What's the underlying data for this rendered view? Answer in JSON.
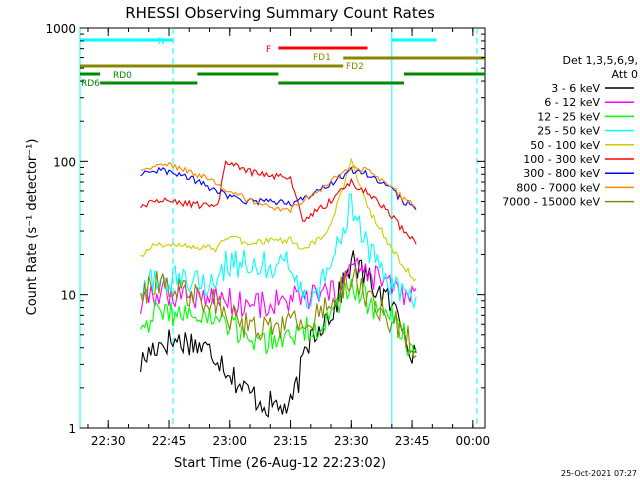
{
  "chart_data": {
    "type": "line",
    "title": "RHESSI Observing Summary Count Rates",
    "xlabel": "Start Time (26-Aug-12 22:23:02)",
    "ylabel": "Count Rate (s⁻¹ detector⁻¹)",
    "y_scale": "log",
    "ylim": [
      1,
      1000
    ],
    "xlim": [
      "22:23:02",
      "00:03:00"
    ],
    "x_ticks": [
      "22:30",
      "22:45",
      "23:00",
      "23:15",
      "23:30",
      "23:45",
      "00:00"
    ],
    "y_ticks": [
      "1",
      "10",
      "100",
      "1000"
    ],
    "grid": false,
    "legend_placement": "right",
    "legend_header": [
      "Det 1,3,5,6,9,",
      "Att 0"
    ],
    "footer_date": "25-Oct-2021 07:27",
    "series": [
      {
        "name": "3 - 6 keV",
        "color": "#000000",
        "x": [
          "22:38",
          "22:41",
          "22:44",
          "22:50",
          "22:57",
          "23:03",
          "23:09",
          "23:15",
          "23:20",
          "23:26",
          "23:30",
          "23:34",
          "23:39",
          "23:43",
          "23:46"
        ],
        "y": [
          3,
          4,
          4.5,
          4.5,
          3.5,
          2,
          1.5,
          1.4,
          5,
          8,
          18,
          13,
          9,
          6,
          3
        ]
      },
      {
        "name": "6 - 12 keV",
        "color": "#ff00ff",
        "x": [
          "22:38",
          "22:41",
          "22:44",
          "22:50",
          "22:57",
          "23:00",
          "23:04",
          "23:09",
          "23:15",
          "23:20",
          "23:26",
          "23:30",
          "23:34",
          "23:39",
          "23:43",
          "23:46"
        ],
        "y": [
          8,
          10,
          10.5,
          10,
          9.5,
          9,
          8.5,
          8.5,
          9,
          9.5,
          10,
          16,
          14,
          12,
          10,
          9.5
        ]
      },
      {
        "name": "12 - 25 keV",
        "color": "#00ff00",
        "x": [
          "22:38",
          "22:41",
          "22:44",
          "22:50",
          "22:57",
          "23:00",
          "23:04",
          "23:09",
          "23:15",
          "23:20",
          "23:26",
          "23:30",
          "23:34",
          "23:39",
          "23:43",
          "23:46"
        ],
        "y": [
          6,
          7,
          7.5,
          7,
          6.5,
          5.5,
          5,
          4.5,
          5,
          5.5,
          7,
          12,
          9,
          7,
          5,
          3.5
        ]
      },
      {
        "name": "25 - 50 keV",
        "color": "#00ffff",
        "x": [
          "22:38",
          "22:41",
          "22:44",
          "22:50",
          "22:57",
          "22:59",
          "23:04",
          "23:09",
          "23:15",
          "23:18",
          "23:24",
          "23:30",
          "23:34",
          "23:39",
          "23:43",
          "23:46"
        ],
        "y": [
          11,
          13,
          13,
          12.5,
          12,
          17,
          17,
          17,
          18,
          9,
          13,
          50,
          22,
          13,
          10,
          9
        ]
      },
      {
        "name": "50 - 100 keV",
        "color": "#cccc00",
        "x": [
          "22:38",
          "22:41",
          "22:44",
          "22:50",
          "22:57",
          "22:59",
          "23:04",
          "23:09",
          "23:15",
          "23:18",
          "23:24",
          "23:30",
          "23:34",
          "23:39",
          "23:43",
          "23:46"
        ],
        "y": [
          20,
          23,
          24,
          23,
          22,
          27,
          25,
          25,
          26,
          22,
          28,
          100,
          45,
          25,
          16,
          13
        ]
      },
      {
        "name": "100 - 300 keV",
        "color": "#ff0000",
        "x": [
          "22:38",
          "22:41",
          "22:44",
          "22:50",
          "22:57",
          "22:59",
          "23:04",
          "23:09",
          "23:15",
          "23:18",
          "23:24",
          "23:30",
          "23:34",
          "23:39",
          "23:43",
          "23:46"
        ],
        "y": [
          45,
          49,
          50,
          48,
          45,
          100,
          85,
          78,
          76,
          36,
          48,
          70,
          58,
          42,
          30,
          24
        ]
      },
      {
        "name": "300 - 800 keV",
        "color": "#0000ff",
        "x": [
          "22:38",
          "22:41",
          "22:44",
          "22:50",
          "22:57",
          "22:59",
          "23:04",
          "23:09",
          "23:15",
          "23:20",
          "23:26",
          "23:30",
          "23:34",
          "23:39",
          "23:43",
          "23:46"
        ],
        "y": [
          78,
          84,
          85,
          75,
          60,
          55,
          50,
          50,
          48,
          55,
          72,
          85,
          80,
          65,
          50,
          44
        ]
      },
      {
        "name": "800 - 7000 keV",
        "color": "#ff8800",
        "x": [
          "22:38",
          "22:41",
          "22:44",
          "22:50",
          "22:57",
          "23:02",
          "23:09",
          "23:15",
          "23:20",
          "23:26",
          "23:30",
          "23:34",
          "23:39",
          "23:43",
          "23:46"
        ],
        "y": [
          86,
          93,
          95,
          84,
          68,
          55,
          46,
          44,
          55,
          75,
          90,
          84,
          68,
          52,
          46
        ]
      },
      {
        "name": "7000 - 15000 keV",
        "color": "#888800",
        "x": [
          "22:38",
          "22:41",
          "22:44",
          "22:50",
          "22:57",
          "23:00",
          "23:04",
          "23:09",
          "23:15",
          "23:20",
          "23:26",
          "23:30",
          "23:34",
          "23:39",
          "23:43",
          "23:46"
        ],
        "y": [
          10,
          12,
          12.5,
          10,
          9,
          7,
          6,
          5.5,
          6,
          7,
          9,
          14,
          10,
          7,
          5,
          4
        ]
      }
    ],
    "flag_labels": [
      "N",
      "F",
      "FD1",
      "FD2",
      "RD0",
      "RD6"
    ],
    "flag_bars": [
      {
        "label": "N",
        "color": "#00ffff",
        "level": 40,
        "segments": [
          [
            "22:23:02",
            "22:46"
          ],
          [
            "23:40",
            "23:51"
          ]
        ]
      },
      {
        "label": "F",
        "color": "#ff0000",
        "level": 48,
        "segments": [
          [
            "23:12",
            "23:34"
          ]
        ]
      },
      {
        "label": "FD1",
        "color": "#888800",
        "level": 58,
        "segments": [
          [
            "23:28",
            "00:03"
          ]
        ]
      },
      {
        "label": "FD2",
        "color": "#888800",
        "level": 66,
        "segments": [
          [
            "22:23:02",
            "23:28"
          ]
        ]
      },
      {
        "label": "RD0",
        "color": "#008800",
        "level": 74,
        "segments": [
          [
            "22:23:02",
            "22:28"
          ],
          [
            "22:52",
            "23:12"
          ],
          [
            "23:43",
            "00:03"
          ]
        ]
      },
      {
        "label": "RD6",
        "color": "#008800",
        "level": 83,
        "segments": [
          [
            "22:28",
            "22:52"
          ],
          [
            "23:12",
            "23:43"
          ]
        ]
      }
    ],
    "vertical_markers": [
      {
        "color": "#00ffff",
        "style": "solid",
        "x": [
          "22:23:02",
          "23:40"
        ]
      },
      {
        "color": "#00ffff",
        "style": "dashed",
        "x": [
          "22:46",
          "00:01"
        ]
      }
    ]
  }
}
